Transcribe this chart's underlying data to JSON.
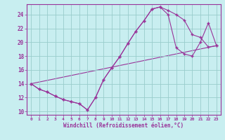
{
  "xlabel": "Windchill (Refroidissement éolien,°C)",
  "bg_color": "#c8eef0",
  "line_color": "#993399",
  "grid_color": "#99cccc",
  "xlim": [
    -0.5,
    23.5
  ],
  "ylim": [
    9.5,
    25.5
  ],
  "xticks": [
    0,
    1,
    2,
    3,
    4,
    5,
    6,
    7,
    8,
    9,
    10,
    11,
    12,
    13,
    14,
    15,
    16,
    17,
    18,
    19,
    20,
    21,
    22,
    23
  ],
  "yticks": [
    10,
    12,
    14,
    16,
    18,
    20,
    22,
    24
  ],
  "line1_x": [
    0,
    1,
    2,
    3,
    4,
    5,
    6,
    7,
    8,
    9,
    10,
    11,
    12,
    13,
    14,
    15,
    16,
    17,
    18,
    19,
    20,
    21,
    22,
    23
  ],
  "line1_y": [
    14.0,
    13.2,
    12.8,
    12.2,
    11.7,
    11.4,
    11.1,
    10.2,
    12.0,
    14.6,
    16.3,
    17.9,
    19.8,
    21.6,
    23.1,
    24.8,
    25.1,
    24.6,
    24.0,
    23.2,
    21.1,
    20.7,
    19.3,
    19.5
  ],
  "line2_x": [
    0,
    1,
    2,
    3,
    4,
    5,
    6,
    7,
    8,
    9,
    10,
    11,
    12,
    13,
    14,
    15,
    16,
    17,
    18,
    19,
    20,
    21,
    22,
    23
  ],
  "line2_y": [
    14.0,
    13.2,
    12.8,
    12.2,
    11.7,
    11.4,
    11.1,
    10.2,
    12.0,
    14.6,
    16.3,
    17.9,
    19.8,
    21.6,
    23.1,
    24.8,
    25.1,
    24.0,
    19.2,
    18.3,
    18.0,
    20.0,
    22.8,
    19.5
  ],
  "line3_x": [
    0,
    23
  ],
  "line3_y": [
    14.0,
    19.5
  ]
}
